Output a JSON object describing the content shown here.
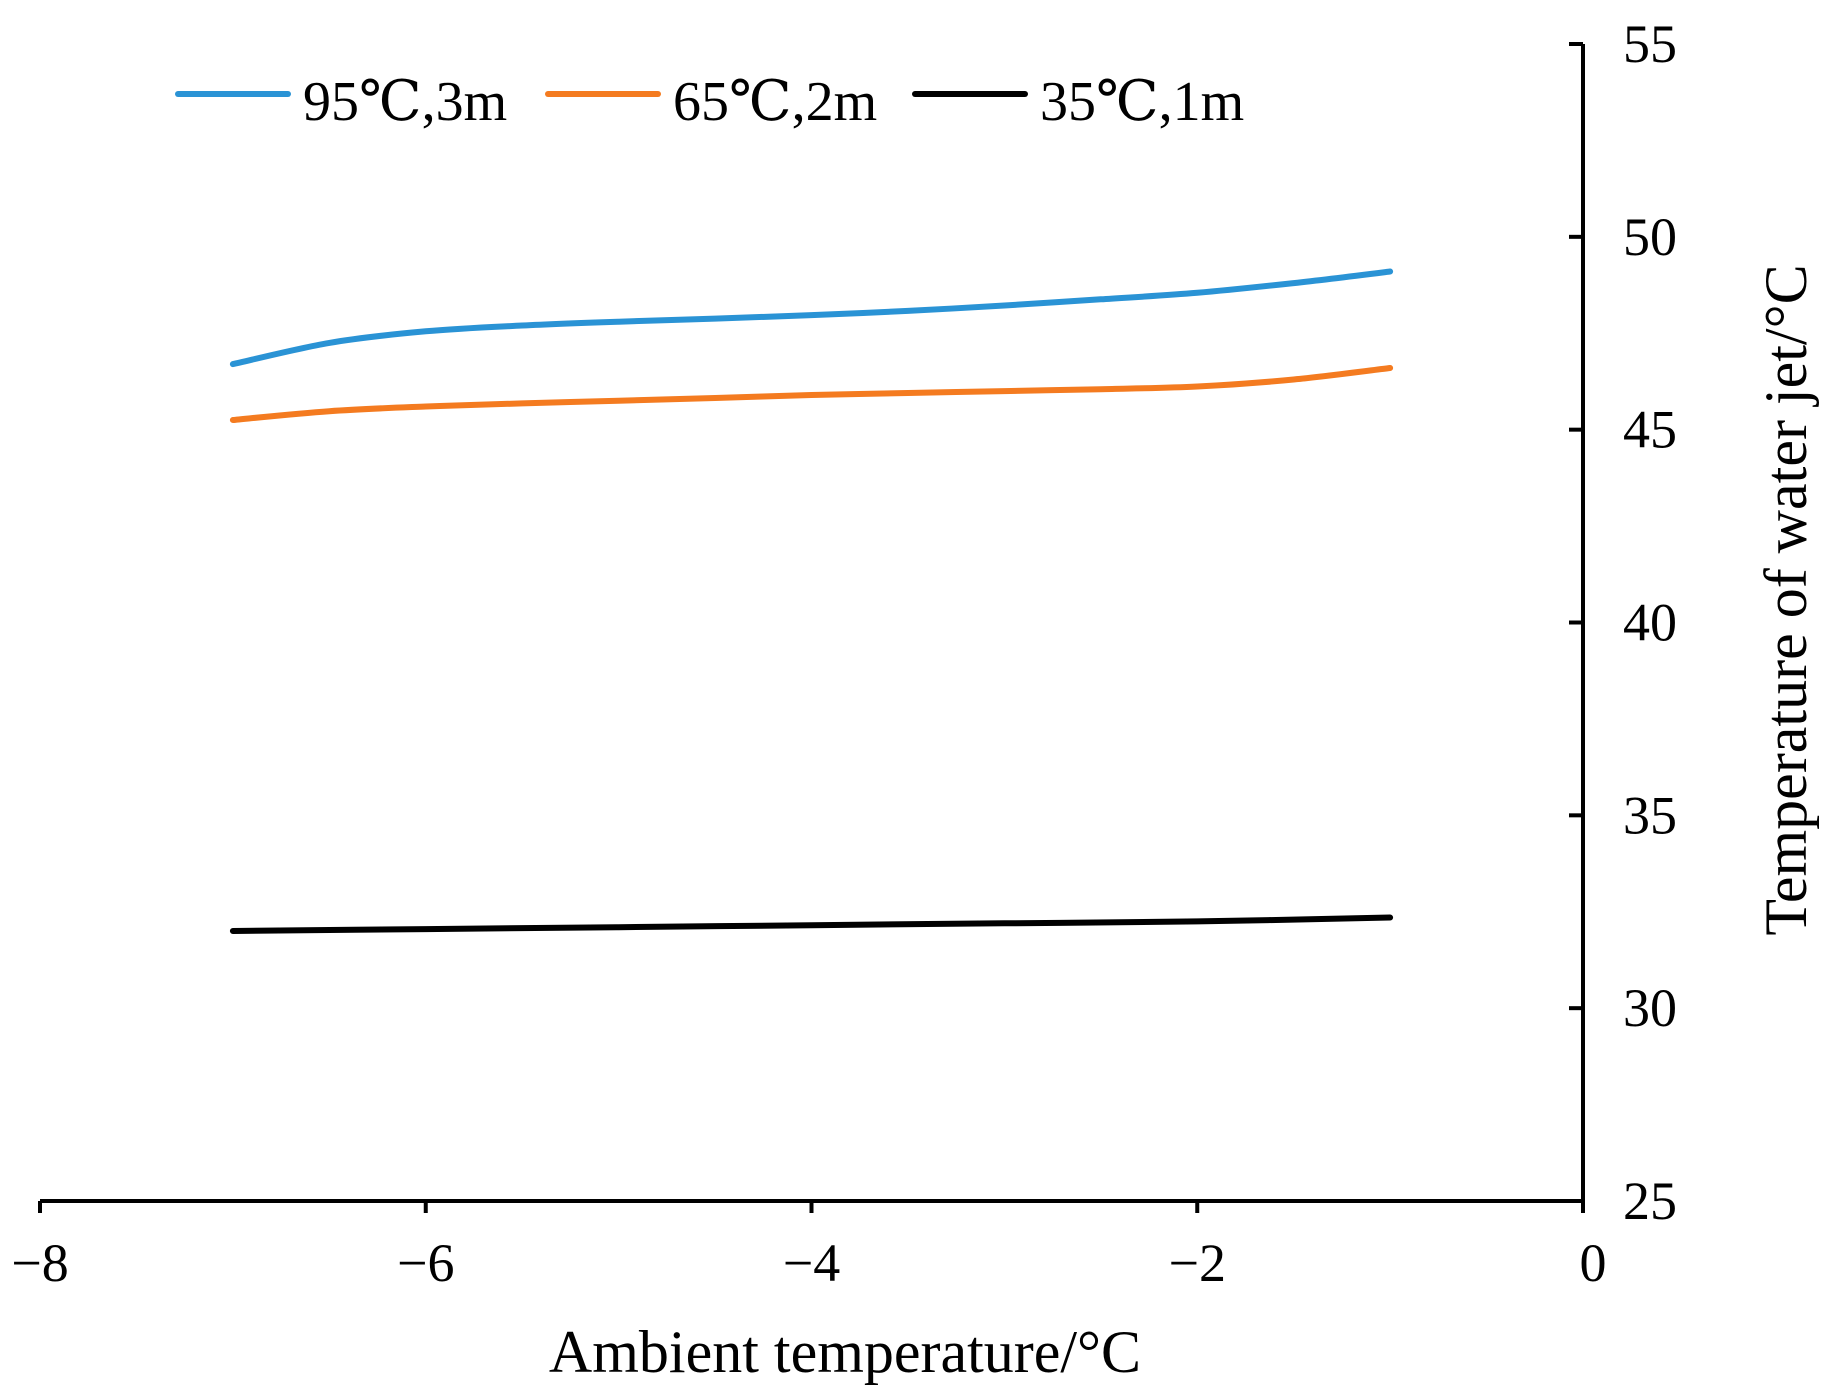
{
  "chart_data": {
    "type": "line",
    "title": "",
    "xlabel": "Ambient temperature/°C",
    "ylabel": "Temperature of water jet/°C",
    "xlim": [
      -8,
      0
    ],
    "ylim": [
      25,
      55
    ],
    "x_ticks": [
      -8,
      -6,
      -4,
      -2,
      0
    ],
    "x_tick_labels": [
      "−8",
      "−6",
      "−4",
      "−2",
      "0"
    ],
    "y_ticks": [
      25,
      30,
      35,
      40,
      45,
      50,
      55
    ],
    "y_tick_labels": [
      "25",
      "30",
      "35",
      "40",
      "45",
      "50",
      "55"
    ],
    "y_axis_side": "right",
    "grid": false,
    "legend_position": "top",
    "series": [
      {
        "name": "95℃,3m",
        "color": "#2a93d5",
        "x": [
          -7,
          -6.5,
          -6,
          -5.5,
          -5,
          -4.5,
          -4,
          -3.5,
          -3,
          -2.5,
          -2,
          -1.5,
          -1
        ],
        "y": [
          46.7,
          47.25,
          47.55,
          47.7,
          47.8,
          47.88,
          47.97,
          48.08,
          48.22,
          48.38,
          48.55,
          48.8,
          49.1
        ]
      },
      {
        "name": "65℃,2m",
        "color": "#f47b20",
        "x": [
          -7,
          -6.5,
          -6,
          -5.5,
          -5,
          -4.5,
          -4,
          -3.5,
          -3,
          -2.5,
          -2,
          -1.5,
          -1
        ],
        "y": [
          45.25,
          45.48,
          45.6,
          45.68,
          45.75,
          45.82,
          45.9,
          45.95,
          46.0,
          46.05,
          46.12,
          46.3,
          46.6
        ]
      },
      {
        "name": "35℃,1m",
        "color": "#000000",
        "x": [
          -7,
          -6,
          -5,
          -4,
          -3,
          -2,
          -1
        ],
        "y": [
          32.0,
          32.05,
          32.1,
          32.15,
          32.2,
          32.25,
          32.35
        ]
      }
    ]
  }
}
